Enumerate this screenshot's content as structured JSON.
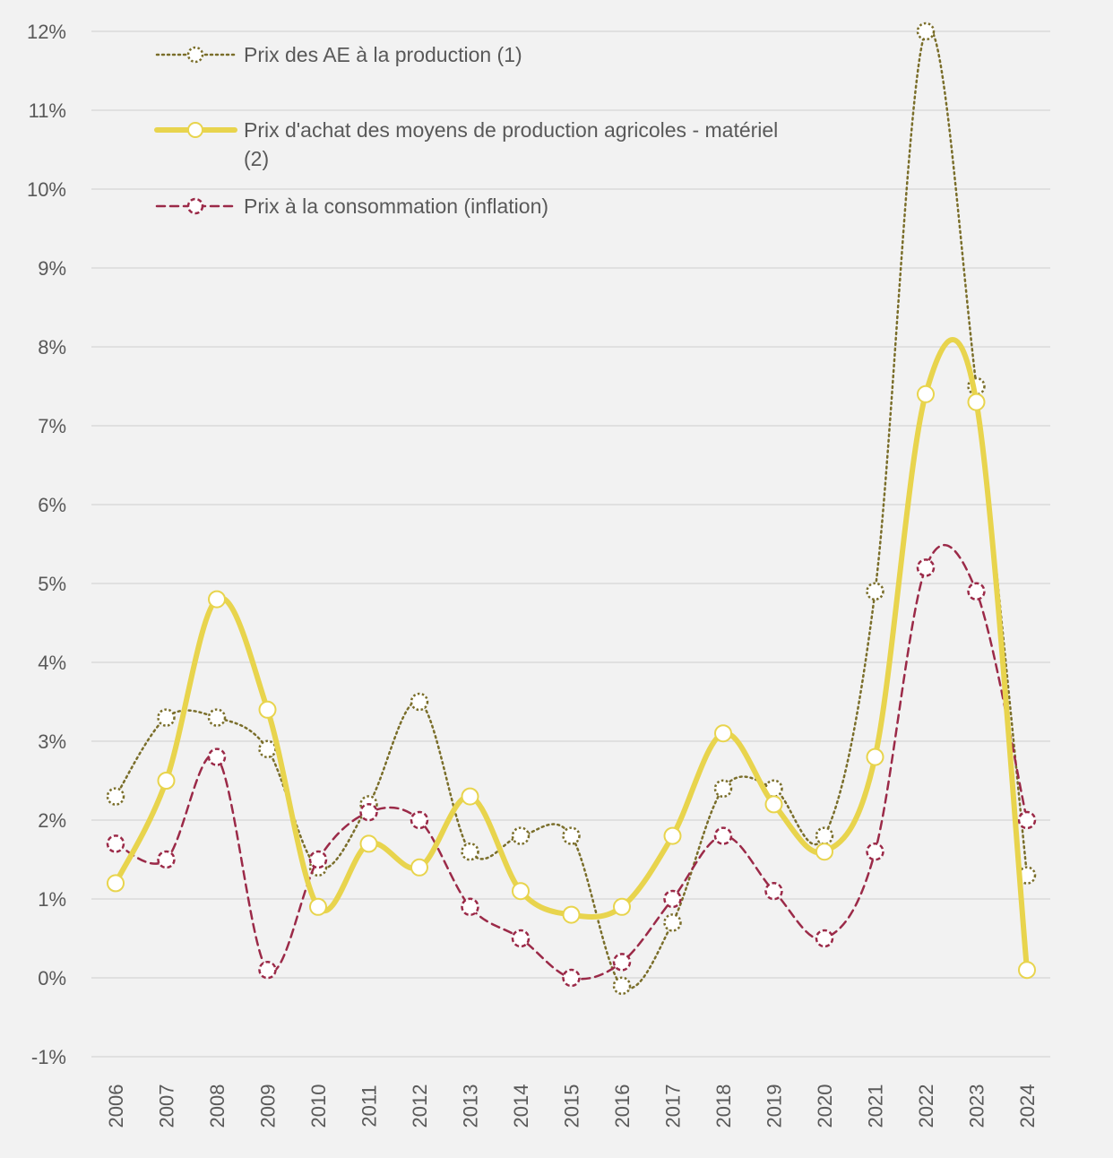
{
  "chart_data": {
    "type": "line",
    "title": "",
    "xlabel": "",
    "ylabel": "",
    "ylim": [
      -1,
      12
    ],
    "y_ticks": [
      -1,
      0,
      1,
      2,
      3,
      4,
      5,
      6,
      7,
      8,
      9,
      10,
      11,
      12
    ],
    "y_tick_labels": [
      "-1%",
      "0%",
      "1%",
      "2%",
      "3%",
      "4%",
      "5%",
      "6%",
      "7%",
      "8%",
      "9%",
      "10%",
      "11%",
      "12%"
    ],
    "grid": true,
    "legend_position": "top-left",
    "categories": [
      "2006",
      "2007",
      "2008",
      "2009",
      "2010",
      "2011",
      "2012",
      "2013",
      "2014",
      "2015",
      "2016",
      "2017",
      "2018",
      "2019",
      "2020",
      "2021",
      "2022",
      "2023",
      "2024"
    ],
    "series": [
      {
        "name": "Prix des AE à la production (1)",
        "legend_lines": [
          "Prix des AE à la production (1)"
        ],
        "color": "#7a6e2a",
        "style": "dotted",
        "values": [
          2.3,
          3.3,
          3.3,
          2.9,
          1.4,
          2.2,
          3.5,
          1.6,
          1.8,
          1.8,
          -0.1,
          0.7,
          2.4,
          2.4,
          1.8,
          4.9,
          12.0,
          7.5,
          1.3
        ]
      },
      {
        "name": "Prix d'achat des moyens de production agricoles - matériel (2)",
        "legend_lines": [
          "Prix d'achat des moyens de production agricoles - matériel",
          "(2)"
        ],
        "color": "#e8d44d",
        "style": "solid",
        "values": [
          1.2,
          2.5,
          4.8,
          3.4,
          0.9,
          1.7,
          1.4,
          2.3,
          1.1,
          0.8,
          0.9,
          1.8,
          3.1,
          2.2,
          1.6,
          2.8,
          7.4,
          7.3,
          0.1
        ]
      },
      {
        "name": "Prix à la consommation (inflation)",
        "legend_lines": [
          "Prix à la consommation (inflation)"
        ],
        "color": "#9b2a48",
        "style": "dashed",
        "values": [
          1.7,
          1.5,
          2.8,
          0.1,
          1.5,
          2.1,
          2.0,
          0.9,
          0.5,
          0.0,
          0.2,
          1.0,
          1.8,
          1.1,
          0.5,
          1.6,
          5.2,
          4.9,
          2.0
        ]
      }
    ]
  }
}
